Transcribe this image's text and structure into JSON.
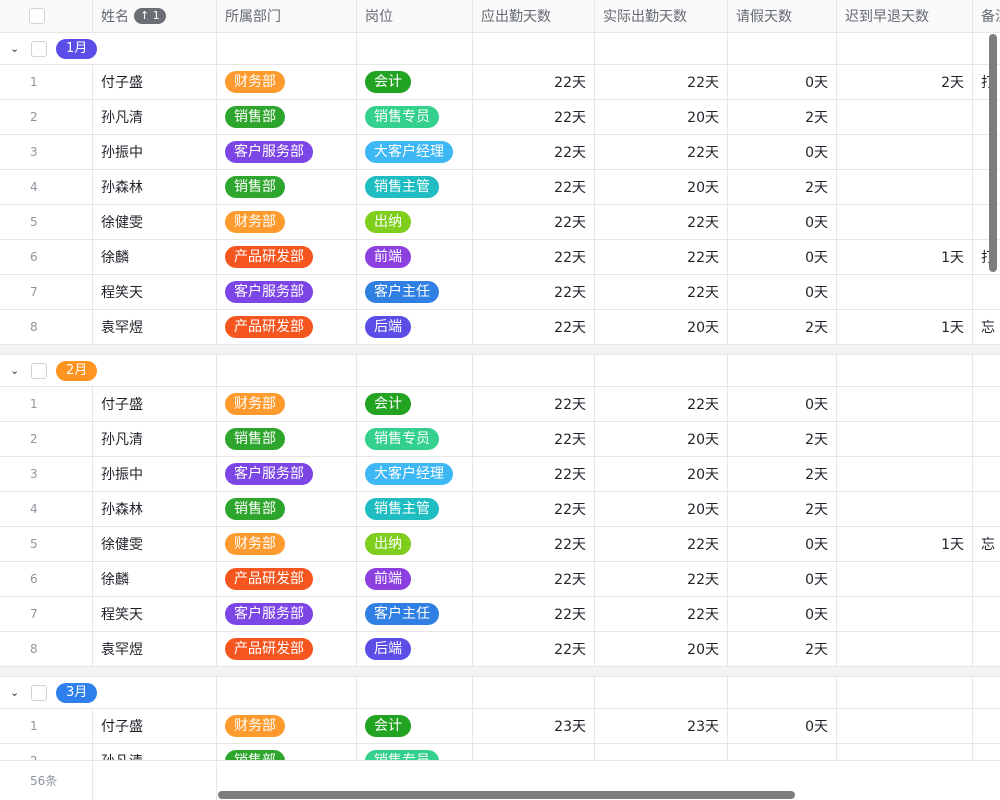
{
  "header": {
    "columns": [
      "姓名",
      "所属部门",
      "岗位",
      "应出勤天数",
      "实际出勤天数",
      "请假天数",
      "迟到早退天数",
      "备注"
    ],
    "sort_badge": "↑ 1"
  },
  "colors": {
    "财务部": "#ff9a2e",
    "销售部": "#2ea52d",
    "客户服务部": "#7c45e6",
    "产品研发部": "#f5561f",
    "会计": "#22a321",
    "销售专员": "#33d08e",
    "大客户经理": "#3eb8f5",
    "销售主管": "#1fbdc1",
    "出纳": "#7fcd1c",
    "前端": "#8c40e0",
    "客户主任": "#3080e3",
    "后端": "#5b4de6"
  },
  "groups": [
    {
      "label": "1月",
      "color": "#5b4de8",
      "rows": [
        {
          "i": "1",
          "name": "付子盛",
          "dept": "财务部",
          "pos": "会计",
          "due": "22天",
          "act": "22天",
          "leave": "0天",
          "late": "2天",
          "note": "打"
        },
        {
          "i": "2",
          "name": "孙凡清",
          "dept": "销售部",
          "pos": "销售专员",
          "due": "22天",
          "act": "20天",
          "leave": "2天",
          "late": "",
          "note": ""
        },
        {
          "i": "3",
          "name": "孙振中",
          "dept": "客户服务部",
          "pos": "大客户经理",
          "due": "22天",
          "act": "22天",
          "leave": "0天",
          "late": "",
          "note": ""
        },
        {
          "i": "4",
          "name": "孙森林",
          "dept": "销售部",
          "pos": "销售主管",
          "due": "22天",
          "act": "20天",
          "leave": "2天",
          "late": "",
          "note": ""
        },
        {
          "i": "5",
          "name": "徐健雯",
          "dept": "财务部",
          "pos": "出纳",
          "due": "22天",
          "act": "22天",
          "leave": "0天",
          "late": "",
          "note": ""
        },
        {
          "i": "6",
          "name": "徐麟",
          "dept": "产品研发部",
          "pos": "前端",
          "due": "22天",
          "act": "22天",
          "leave": "0天",
          "late": "1天",
          "note": "打"
        },
        {
          "i": "7",
          "name": "程笑天",
          "dept": "客户服务部",
          "pos": "客户主任",
          "due": "22天",
          "act": "22天",
          "leave": "0天",
          "late": "",
          "note": ""
        },
        {
          "i": "8",
          "name": "袁罕煜",
          "dept": "产品研发部",
          "pos": "后端",
          "due": "22天",
          "act": "20天",
          "leave": "2天",
          "late": "1天",
          "note": "忘"
        }
      ]
    },
    {
      "label": "2月",
      "color": "#ff9420",
      "rows": [
        {
          "i": "1",
          "name": "付子盛",
          "dept": "财务部",
          "pos": "会计",
          "due": "22天",
          "act": "22天",
          "leave": "0天",
          "late": "",
          "note": ""
        },
        {
          "i": "2",
          "name": "孙凡清",
          "dept": "销售部",
          "pos": "销售专员",
          "due": "22天",
          "act": "20天",
          "leave": "2天",
          "late": "",
          "note": ""
        },
        {
          "i": "3",
          "name": "孙振中",
          "dept": "客户服务部",
          "pos": "大客户经理",
          "due": "22天",
          "act": "20天",
          "leave": "2天",
          "late": "",
          "note": ""
        },
        {
          "i": "4",
          "name": "孙森林",
          "dept": "销售部",
          "pos": "销售主管",
          "due": "22天",
          "act": "20天",
          "leave": "2天",
          "late": "",
          "note": ""
        },
        {
          "i": "5",
          "name": "徐健雯",
          "dept": "财务部",
          "pos": "出纳",
          "due": "22天",
          "act": "22天",
          "leave": "0天",
          "late": "1天",
          "note": "忘"
        },
        {
          "i": "6",
          "name": "徐麟",
          "dept": "产品研发部",
          "pos": "前端",
          "due": "22天",
          "act": "22天",
          "leave": "0天",
          "late": "",
          "note": ""
        },
        {
          "i": "7",
          "name": "程笑天",
          "dept": "客户服务部",
          "pos": "客户主任",
          "due": "22天",
          "act": "22天",
          "leave": "0天",
          "late": "",
          "note": ""
        },
        {
          "i": "8",
          "name": "袁罕煜",
          "dept": "产品研发部",
          "pos": "后端",
          "due": "22天",
          "act": "20天",
          "leave": "2天",
          "late": "",
          "note": ""
        }
      ]
    },
    {
      "label": "3月",
      "color": "#2f80ed",
      "rows": [
        {
          "i": "1",
          "name": "付子盛",
          "dept": "财务部",
          "pos": "会计",
          "due": "23天",
          "act": "23天",
          "leave": "0天",
          "late": "",
          "note": ""
        },
        {
          "i": "2",
          "name": "孙凡清",
          "dept": "销售部",
          "pos": "销售专员",
          "due": "",
          "act": "",
          "leave": "",
          "late": "",
          "note": ""
        }
      ]
    }
  ],
  "footer": {
    "count": "56条"
  }
}
